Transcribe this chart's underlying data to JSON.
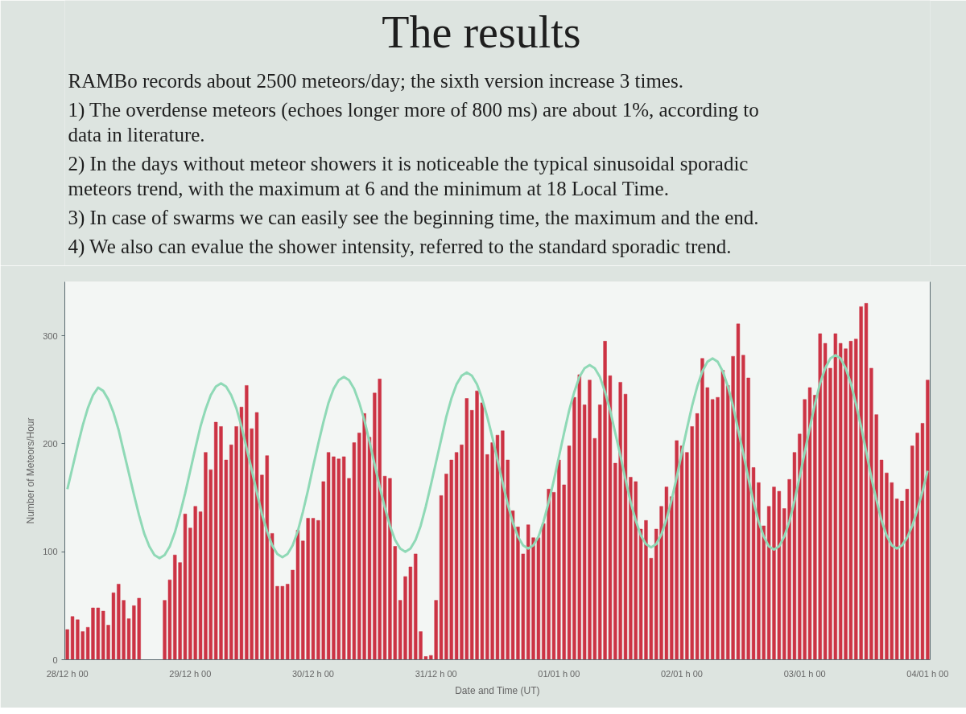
{
  "chart_data": {
    "type": "bar",
    "title": "The results",
    "annotations": [
      "RAMBo records about 2500 meteors/day;  the sixth version increase 3 times.",
      "1) The overdense meteors (echoes longer more of 800 ms) are about 1%, according to data in literature.",
      "2) In the days without meteor showers it is noticeable the typical sinusoidal sporadic meteors trend, with the maximum at 6 and the minimum at 18 Local Time.",
      "3) In case of swarms we can easily see the beginning time, the maximum and the end.",
      "4) We also can evalue the shower intensity, referred to the standard sporadic trend."
    ],
    "xlabel": "Date and Time (UT)",
    "ylabel": "Number of Meteors/Hour",
    "ylim": [
      0,
      350
    ],
    "yticks": [
      0,
      100,
      200,
      300
    ],
    "categories": [
      "28/12 h 00",
      null,
      null,
      null,
      null,
      null,
      null,
      null,
      null,
      null,
      null,
      null,
      null,
      null,
      null,
      null,
      null,
      null,
      null,
      null,
      null,
      null,
      null,
      null,
      "29/12 h 00",
      null,
      null,
      null,
      null,
      null,
      null,
      null,
      null,
      null,
      null,
      null,
      null,
      null,
      null,
      null,
      null,
      null,
      null,
      null,
      null,
      null,
      null,
      null,
      "30/12 h 00",
      null,
      null,
      null,
      null,
      null,
      null,
      null,
      null,
      null,
      null,
      null,
      null,
      null,
      null,
      null,
      null,
      null,
      null,
      null,
      null,
      null,
      null,
      null,
      "31/12 h 00",
      null,
      null,
      null,
      null,
      null,
      null,
      null,
      null,
      null,
      null,
      null,
      null,
      null,
      null,
      null,
      null,
      null,
      null,
      null,
      null,
      null,
      null,
      null,
      "01/01 h 00",
      null,
      null,
      null,
      null,
      null,
      null,
      null,
      null,
      null,
      null,
      null,
      null,
      null,
      null,
      null,
      null,
      null,
      null,
      null,
      null,
      null,
      null,
      null,
      "02/01 h 00",
      null,
      null,
      null,
      null,
      null,
      null,
      null,
      null,
      null,
      null,
      null,
      null,
      null,
      null,
      null,
      null,
      null,
      null,
      null,
      null,
      null,
      null,
      null,
      "03/01 h 00",
      null,
      null,
      null,
      null,
      null,
      null,
      null,
      null,
      null,
      null,
      null,
      null,
      null,
      null,
      null,
      null,
      null,
      null,
      null,
      null,
      null,
      null,
      null,
      "04/01 h 00"
    ],
    "series": [
      {
        "color": "#cc3344",
        "values": [
          28,
          40,
          37,
          26,
          30,
          48,
          48,
          45,
          32,
          62,
          70,
          55,
          38,
          50,
          57,
          null,
          null,
          null,
          null,
          55,
          74,
          97,
          90,
          135,
          122,
          142,
          137,
          192,
          176,
          220,
          216,
          185,
          199,
          216,
          234,
          254,
          214,
          229,
          171,
          189,
          117,
          68,
          68,
          70,
          83,
          120,
          110,
          131,
          131,
          129,
          165,
          192,
          188,
          186,
          188,
          168,
          201,
          210,
          228,
          206,
          247,
          260,
          170,
          168,
          105,
          55,
          77,
          86,
          98,
          26,
          3,
          4,
          55,
          152,
          172,
          185,
          192,
          199,
          242,
          231,
          249,
          238,
          190,
          201,
          208,
          212,
          185,
          138,
          123,
          98,
          125,
          113,
          113,
          126,
          158,
          155,
          185,
          162,
          198,
          243,
          264,
          236,
          259,
          205,
          236,
          295,
          263,
          182,
          257,
          246,
          169,
          165,
          121,
          129,
          94,
          121,
          142,
          160,
          151,
          203,
          198,
          192,
          216,
          228,
          279,
          252,
          241,
          243,
          268,
          254,
          281,
          311,
          282,
          261,
          178,
          164,
          124,
          142,
          160,
          156,
          140,
          167,
          192,
          209,
          241,
          252,
          245,
          302,
          293,
          270,
          302,
          293,
          288,
          295,
          297,
          327,
          330,
          270,
          227,
          185,
          173,
          164,
          149,
          147,
          158,
          198,
          210,
          219,
          259
        ]
      },
      {
        "type": "line",
        "color": "#8fd9b6",
        "values": [
          158,
          178,
          198,
          217,
          233,
          245,
          252,
          249,
          241,
          229,
          213,
          193,
          173,
          153,
          134,
          117,
          105,
          97,
          94,
          97,
          105,
          118,
          135,
          154,
          175,
          196,
          216,
          232,
          245,
          253,
          256,
          253,
          245,
          233,
          216,
          196,
          176,
          155,
          135,
          119,
          106,
          98,
          95,
          98,
          106,
          119,
          137,
          157,
          179,
          200,
          220,
          238,
          251,
          259,
          262,
          259,
          251,
          238,
          222,
          202,
          181,
          160,
          141,
          124,
          111,
          103,
          100,
          103,
          111,
          124,
          142,
          162,
          183,
          204,
          225,
          242,
          255,
          263,
          266,
          263,
          255,
          242,
          225,
          206,
          185,
          164,
          144,
          127,
          114,
          106,
          103,
          106,
          114,
          128,
          146,
          166,
          188,
          210,
          231,
          248,
          262,
          270,
          273,
          270,
          262,
          248,
          231,
          210,
          189,
          167,
          146,
          129,
          115,
          107,
          104,
          107,
          116,
          130,
          148,
          169,
          192,
          214,
          235,
          253,
          267,
          276,
          279,
          276,
          267,
          253,
          235,
          213,
          191,
          168,
          146,
          128,
          114,
          105,
          102,
          105,
          114,
          128,
          147,
          169,
          192,
          215,
          237,
          256,
          270,
          279,
          282,
          279,
          270,
          256,
          237,
          216,
          193,
          169,
          148,
          129,
          115,
          106,
          103,
          106,
          113,
          124,
          139,
          156,
          175
        ]
      }
    ]
  }
}
